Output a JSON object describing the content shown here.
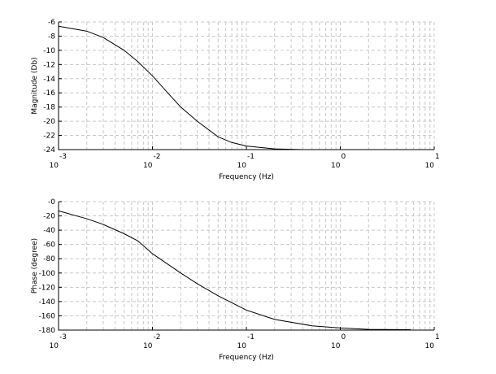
{
  "chart_data": [
    {
      "type": "line",
      "x_label": "Frequency (Hz)",
      "y_label": "Magnitude (Db)",
      "log_x": true,
      "grid": true,
      "xlim": [
        0.001,
        10
      ],
      "xticks": [
        {
          "value": 0.001,
          "label": "10",
          "exponent": "-3"
        },
        {
          "value": 0.01,
          "label": "10",
          "exponent": "-2"
        },
        {
          "value": 0.1,
          "label": "10",
          "exponent": "-1"
        },
        {
          "value": 1,
          "label": "10",
          "exponent": "0"
        },
        {
          "value": 10,
          "label": "10",
          "exponent": "1"
        }
      ],
      "ylim": [
        -24,
        -6
      ],
      "yticks": [
        -6,
        -8,
        -10,
        -12,
        -14,
        -16,
        -18,
        -20,
        -22,
        -24
      ],
      "x": [
        0.001,
        0.002,
        0.003,
        0.005,
        0.007,
        0.01,
        0.015,
        0.02,
        0.03,
        0.05,
        0.07,
        0.1,
        0.2,
        0.4
      ],
      "series": [
        {
          "color": "#000000",
          "values": [
            -6.6,
            -7.3,
            -8.2,
            -10.0,
            -11.6,
            -13.6,
            -16.2,
            -18.0,
            -20.0,
            -22.2,
            -23.0,
            -23.5,
            -23.9,
            -24.0
          ]
        }
      ]
    },
    {
      "type": "line",
      "x_label": "Frequency (Hz)",
      "y_label": "Phase (degree)",
      "log_x": true,
      "grid": true,
      "xlim": [
        0.001,
        10
      ],
      "xticks": [
        {
          "value": 0.001,
          "label": "10",
          "exponent": "-3"
        },
        {
          "value": 0.01,
          "label": "10",
          "exponent": "-2"
        },
        {
          "value": 0.1,
          "label": "10",
          "exponent": "-1"
        },
        {
          "value": 1,
          "label": "10",
          "exponent": "0"
        },
        {
          "value": 10,
          "label": "10",
          "exponent": "1"
        }
      ],
      "ylim": [
        -180,
        0
      ],
      "yticks": [
        {
          "value": 0,
          "label": "-0"
        },
        -20,
        -40,
        -60,
        -80,
        -100,
        -120,
        -140,
        -160,
        -180
      ],
      "x": [
        0.001,
        0.002,
        0.003,
        0.005,
        0.007,
        0.01,
        0.02,
        0.03,
        0.05,
        0.1,
        0.2,
        0.5,
        1,
        2,
        5.6
      ],
      "series": [
        {
          "color": "#000000",
          "values": [
            -13,
            -24,
            -32,
            -45,
            -55,
            -73,
            -100,
            -115,
            -132,
            -152,
            -165,
            -174,
            -177,
            -179,
            -179.5
          ]
        }
      ]
    }
  ]
}
